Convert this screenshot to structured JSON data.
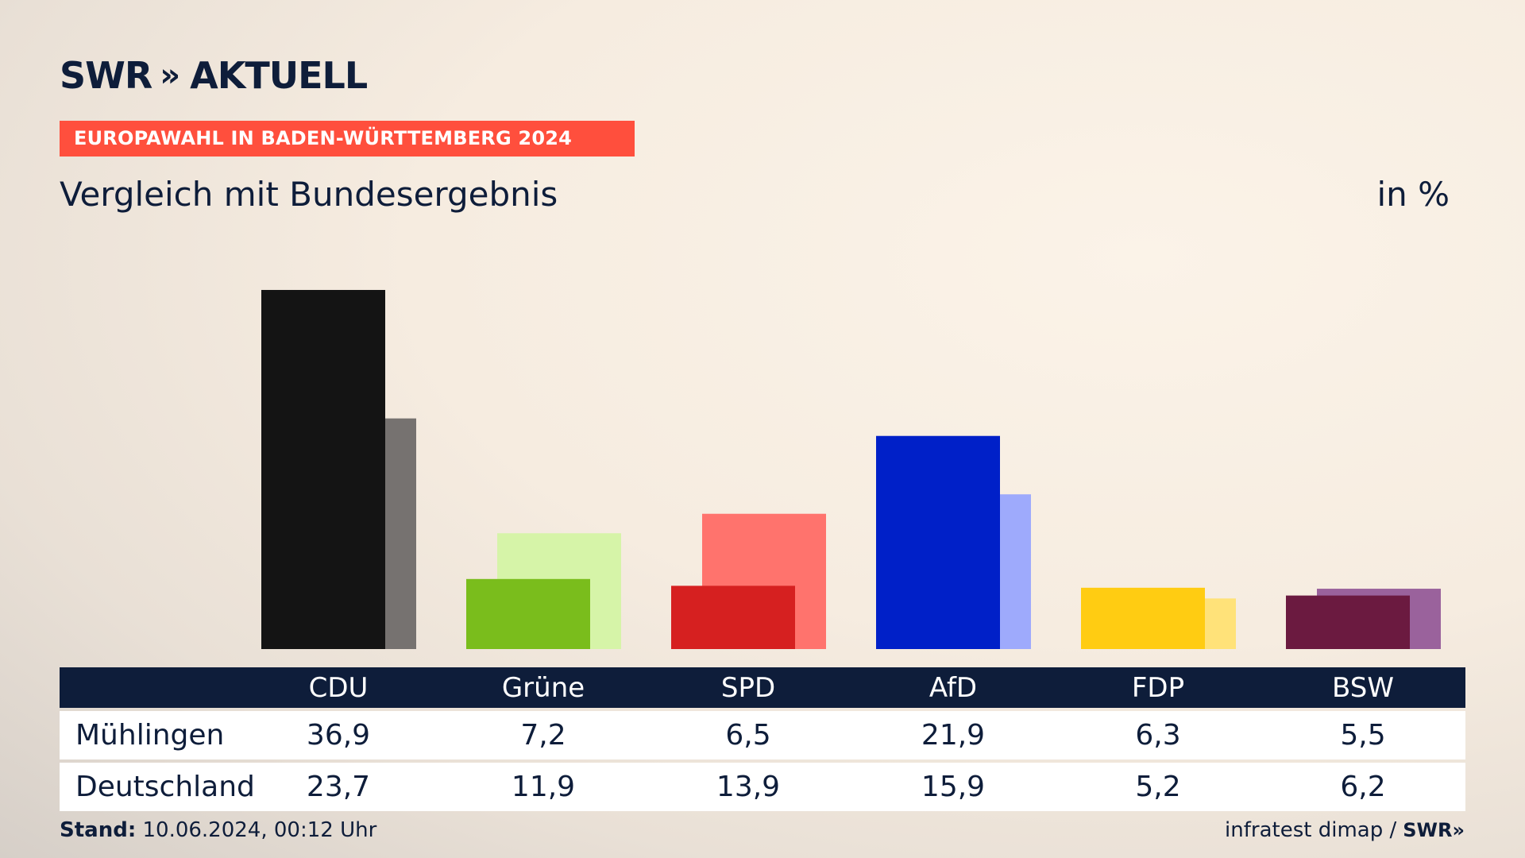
{
  "header": {
    "logo_text": "SWR",
    "logo_chevrons": "»",
    "logo_suffix": "AKTUELL",
    "banner": "EUROPAWAHL IN BADEN-WÜRTTEMBERG 2024",
    "subtitle": "Vergleich mit Bundesergebnis",
    "unit": "in %"
  },
  "colors": {
    "navy": "#0e1d3a",
    "banner": "#ff4f3d"
  },
  "chart_data": {
    "type": "bar",
    "categories": [
      "CDU",
      "Grüne",
      "SPD",
      "AfD",
      "FDP",
      "BSW"
    ],
    "series": [
      {
        "name": "Mühlingen",
        "values": [
          36.9,
          7.2,
          6.5,
          21.9,
          6.3,
          5.5
        ],
        "colors": [
          "#141414",
          "#7abd1c",
          "#d62020",
          "#0020c8",
          "#ffcc12",
          "#6b1a40"
        ]
      },
      {
        "name": "Deutschland",
        "values": [
          23.7,
          11.9,
          13.9,
          15.9,
          5.2,
          6.2
        ],
        "colors": [
          "#767270",
          "#d6f4a8",
          "#ff736d",
          "#9eaafc",
          "#ffe279",
          "#9a629c"
        ]
      }
    ],
    "ylim": [
      0,
      40
    ],
    "grid": false,
    "legend": "none"
  },
  "table": {
    "rows": [
      {
        "label": "Mühlingen",
        "values": [
          "36,9",
          "7,2",
          "6,5",
          "21,9",
          "6,3",
          "5,5"
        ]
      },
      {
        "label": "Deutschland",
        "values": [
          "23,7",
          "11,9",
          "13,9",
          "15,9",
          "5,2",
          "6,2"
        ]
      }
    ]
  },
  "footer": {
    "stand_label": "Stand:",
    "stand_value": "10.06.2024, 00:12 Uhr",
    "source": "infratest dimap /",
    "source_logo": "SWR»"
  }
}
